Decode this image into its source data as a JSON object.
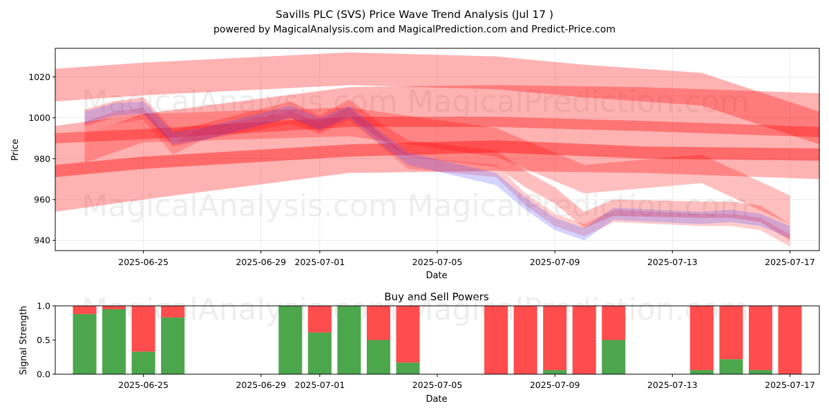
{
  "chart_data": [
    {
      "type": "area",
      "title": "Savills PLC (SVS) Price Wave Trend Analysis (Jul 17 )",
      "subtitle": "powered by MagicalAnalysis.com and MagicalPrediction.com and Predict-Price.com",
      "xlabel": "Date",
      "ylabel": "Price",
      "xlim": [
        "2025-06-22",
        "2025-07-18"
      ],
      "ylim": [
        935,
        1034
      ],
      "grid": true,
      "x_ticks": [
        "2025-06-25",
        "2025-06-29",
        "2025-07-01",
        "2025-07-05",
        "2025-07-09",
        "2025-07-13",
        "2025-07-17"
      ],
      "y_ticks": [
        940,
        960,
        980,
        1000,
        1020
      ],
      "watermarks": [
        "MagicalAnalysis.com",
        "MagicalPrediction.com"
      ],
      "colors": {
        "red_band": "#ff0000",
        "blue_band": "#5555ff"
      },
      "x": [
        "2025-06-23",
        "2025-06-24",
        "2025-06-25",
        "2025-06-26",
        "2025-06-27",
        "2025-06-30",
        "2025-07-01",
        "2025-07-02",
        "2025-07-03",
        "2025-07-04",
        "2025-07-07",
        "2025-07-08",
        "2025-07-09",
        "2025-07-10",
        "2025-07-11",
        "2025-07-14",
        "2025-07-15",
        "2025-07-16",
        "2025-07-17"
      ],
      "series": [
        {
          "name": "wave-band-1",
          "color": "red",
          "x": [
            "2025-06-22",
            "2025-06-25",
            "2025-07-02",
            "2025-07-07",
            "2025-07-10",
            "2025-07-14",
            "2025-07-18"
          ],
          "center": [
            1016,
            1019,
            1024,
            1022,
            1018,
            1014,
            995
          ],
          "width": 16,
          "opacity": 0.3
        },
        {
          "name": "wave-band-2",
          "color": "red",
          "x": [
            "2025-06-22",
            "2025-06-25",
            "2025-07-02",
            "2025-07-07",
            "2025-07-12",
            "2025-07-18"
          ],
          "center": [
            975,
            981,
            994,
            995,
            994,
            991
          ],
          "width": 42,
          "opacity": 0.3
        },
        {
          "name": "wave-band-3",
          "color": "red",
          "x": [
            "2025-06-22",
            "2025-06-25",
            "2025-07-02",
            "2025-07-07",
            "2025-07-12",
            "2025-07-18"
          ],
          "center": [
            974,
            978,
            984,
            986,
            983,
            982
          ],
          "width": 6,
          "opacity": 0.4
        },
        {
          "name": "wave-band-4",
          "color": "red",
          "x": [
            "2025-06-22",
            "2025-06-25",
            "2025-07-02",
            "2025-07-07",
            "2025-07-12",
            "2025-07-18"
          ],
          "center": [
            990,
            992,
            998,
            998,
            996,
            993
          ],
          "width": 5,
          "opacity": 0.35
        },
        {
          "name": "wave-band-5",
          "color": "red",
          "x": [
            "2025-06-23",
            "2025-06-25",
            "2025-07-02",
            "2025-07-07",
            "2025-07-10",
            "2025-07-14",
            "2025-07-17"
          ],
          "center": [
            985,
            995,
            998,
            988,
            970,
            975,
            955
          ],
          "width": 14,
          "opacity": 0.25
        },
        {
          "name": "price-path-red-1",
          "color": "red",
          "x": [
            "2025-06-23",
            "2025-06-24",
            "2025-06-25",
            "2025-06-26",
            "2025-06-27",
            "2025-06-30",
            "2025-07-01",
            "2025-07-02",
            "2025-07-03",
            "2025-07-04",
            "2025-07-07",
            "2025-07-08",
            "2025-07-09",
            "2025-07-10",
            "2025-07-11",
            "2025-07-14",
            "2025-07-15",
            "2025-07-16",
            "2025-07-17"
          ],
          "center": [
            1000,
            1004,
            1006,
            990,
            993,
            1004,
            997,
            1005,
            994,
            985,
            980,
            970,
            962,
            950,
            956,
            955,
            955,
            953,
            944
          ],
          "width": 8,
          "opacity": 0.25
        },
        {
          "name": "price-path-red-2",
          "color": "red",
          "x": [
            "2025-06-23",
            "2025-06-24",
            "2025-06-25",
            "2025-06-26",
            "2025-06-27",
            "2025-06-30",
            "2025-07-01",
            "2025-07-02",
            "2025-07-03",
            "2025-07-04",
            "2025-07-07",
            "2025-07-08",
            "2025-07-09",
            "2025-07-10",
            "2025-07-11",
            "2025-07-14",
            "2025-07-15",
            "2025-07-16",
            "2025-07-17"
          ],
          "center": [
            995,
            1000,
            1002,
            985,
            992,
            1000,
            995,
            1002,
            990,
            978,
            974,
            960,
            950,
            945,
            952,
            950,
            950,
            948,
            940
          ],
          "width": 6,
          "opacity": 0.2
        },
        {
          "name": "price-path-blue",
          "color": "blue",
          "x": [
            "2025-06-23",
            "2025-06-24",
            "2025-06-25",
            "2025-06-26",
            "2025-06-27",
            "2025-06-30",
            "2025-07-01",
            "2025-07-02",
            "2025-07-03",
            "2025-07-04",
            "2025-07-07",
            "2025-07-08",
            "2025-07-09",
            "2025-07-10",
            "2025-07-11",
            "2025-07-14",
            "2025-07-15",
            "2025-07-16",
            "2025-07-17"
          ],
          "center": [
            1000,
            1004,
            1005,
            990,
            992,
            1003,
            997,
            1003,
            991,
            980,
            970,
            958,
            948,
            943,
            953,
            951,
            952,
            950,
            944
          ],
          "width": 6,
          "opacity": 0.25
        }
      ]
    },
    {
      "type": "bar",
      "title": "Buy and Sell Powers",
      "xlabel": "Date",
      "ylabel": "Signal Strength",
      "ylim": [
        0,
        1
      ],
      "xlim": [
        "2025-06-22",
        "2025-07-18"
      ],
      "y_ticks": [
        "0.0",
        "0.5",
        "1.0"
      ],
      "x_ticks": [
        "2025-06-25",
        "2025-06-29",
        "2025-07-01",
        "2025-07-05",
        "2025-07-09",
        "2025-07-13",
        "2025-07-17"
      ],
      "colors": {
        "buy": "#4ca64c",
        "sell": "#ff4c4c"
      },
      "categories": [
        "2025-06-23",
        "2025-06-24",
        "2025-06-25",
        "2025-06-26",
        "2025-06-30",
        "2025-07-01",
        "2025-07-02",
        "2025-07-03",
        "2025-07-04",
        "2025-07-07",
        "2025-07-08",
        "2025-07-09",
        "2025-07-10",
        "2025-07-11",
        "2025-07-14",
        "2025-07-15",
        "2025-07-16",
        "2025-07-17"
      ],
      "series": [
        {
          "name": "Buy",
          "values": [
            0.88,
            0.95,
            0.33,
            0.83,
            1.0,
            0.61,
            1.0,
            0.5,
            0.17,
            0.0,
            0.0,
            0.06,
            0.0,
            0.5,
            0.06,
            0.22,
            0.06,
            0.0
          ]
        },
        {
          "name": "Sell",
          "values": [
            0.12,
            0.05,
            0.67,
            0.17,
            0.0,
            0.39,
            0.0,
            0.5,
            0.83,
            1.0,
            1.0,
            0.94,
            1.0,
            0.5,
            0.94,
            0.78,
            0.94,
            1.0
          ]
        }
      ]
    }
  ]
}
